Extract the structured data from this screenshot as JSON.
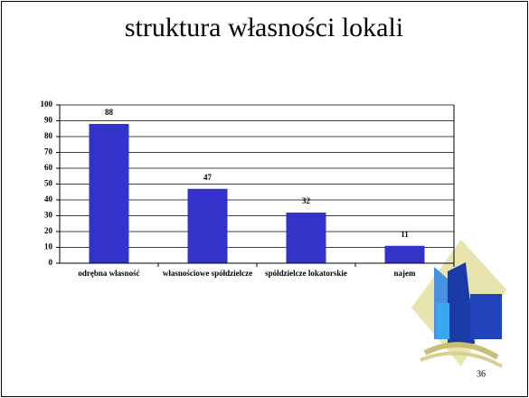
{
  "chart_data": {
    "type": "bar",
    "title": "struktura własności lokali",
    "categories": [
      "odrębna własność",
      "własnościowe spółdzielcze",
      "spółdzielcze lokatorskie",
      "najem"
    ],
    "values": [
      88,
      47,
      32,
      11
    ],
    "color": "#3333cc",
    "ylim": [
      0,
      100
    ],
    "yticks": [
      0,
      10,
      20,
      30,
      40,
      50,
      60,
      70,
      80,
      90,
      100
    ],
    "grid": true
  },
  "slide_number": "36"
}
